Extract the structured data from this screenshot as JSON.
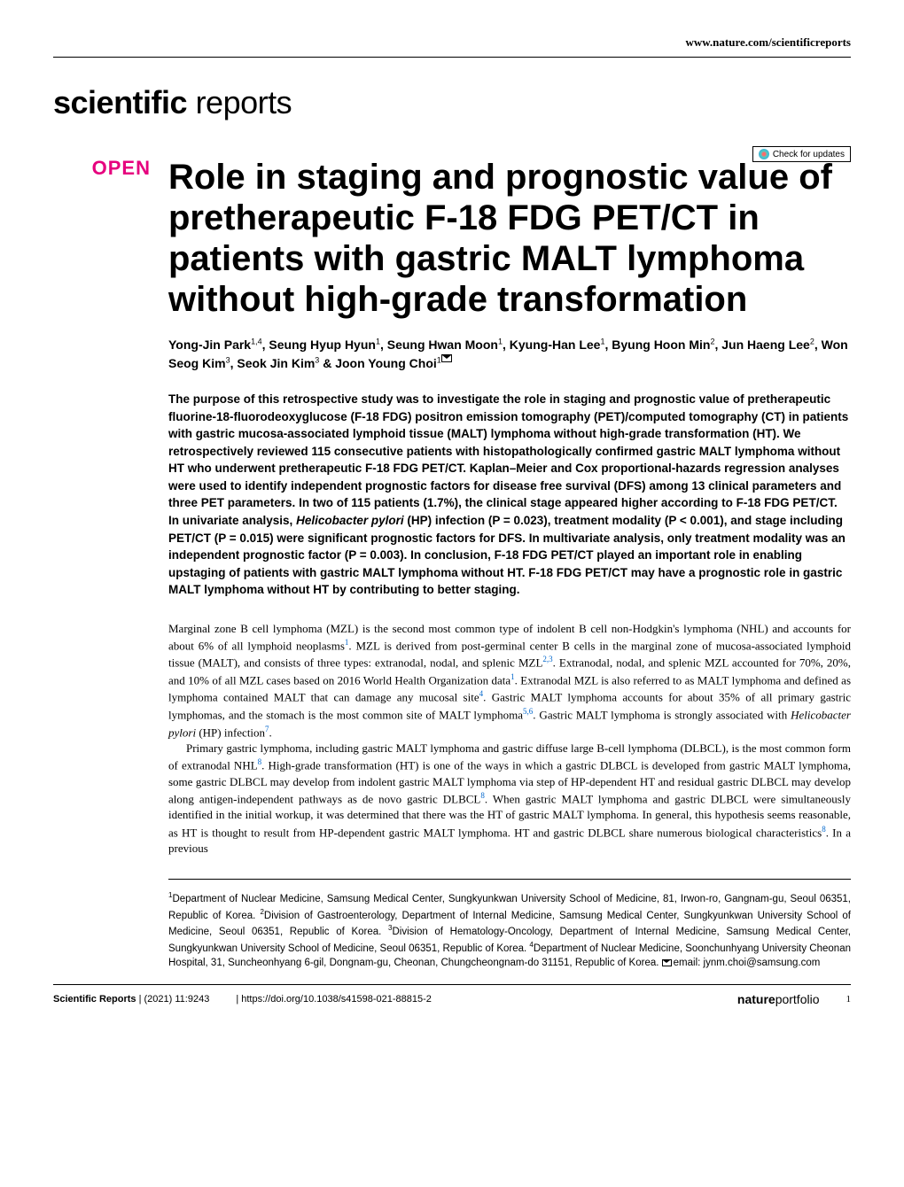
{
  "header": {
    "url": "www.nature.com/scientificreports",
    "journal_logo_bold": "scientific",
    "journal_logo_light": " reports",
    "check_updates": "Check for updates"
  },
  "article": {
    "open_badge": "OPEN",
    "title": "Role in staging and prognostic value of pretherapeutic F-18 FDG PET/CT in patients with gastric MALT lymphoma without high-grade transformation",
    "authors_line1": "Yong-Jin Park",
    "authors_sup1": "1,4",
    "authors_sep1": ", Seung Hyup Hyun",
    "authors_sup2": "1",
    "authors_sep2": ", Seung Hwan Moon",
    "authors_sup3": "1",
    "authors_sep3": ", Kyung-Han Lee",
    "authors_sup4": "1",
    "authors_sep4": ", Byung Hoon Min",
    "authors_sup5": "2",
    "authors_sep5": ", Jun Haeng Lee",
    "authors_sup6": "2",
    "authors_sep6": ", Won Seog Kim",
    "authors_sup7": "3",
    "authors_sep7": ", Seok Jin Kim",
    "authors_sup8": "3",
    "authors_sep8": " & Joon Young Choi",
    "authors_sup9": "1"
  },
  "abstract": {
    "text_part1": "The purpose of this retrospective study was to investigate the role in staging and prognostic value of pretherapeutic fluorine-18-fluorodeoxyglucose (F-18 FDG) positron emission tomography (PET)/computed tomography (CT) in patients with gastric mucosa-associated lymphoid tissue (MALT) lymphoma without high-grade transformation (HT). We retrospectively reviewed 115 consecutive patients with histopathologically confirmed gastric MALT lymphoma without HT who underwent pretherapeutic F-18 FDG PET/CT. Kaplan–Meier and Cox proportional-hazards regression analyses were used to identify independent prognostic factors for disease free survival (DFS) among 13 clinical parameters and three PET parameters. In two of 115 patients (1.7%), the clinical stage appeared higher according to F-18 FDG PET/CT. In univariate analysis, ",
    "italic1": "Helicobacter pylori",
    "text_part2": " (HP) infection (P = 0.023), treatment modality (P < 0.001), and stage including PET/CT (P = 0.015) were significant prognostic factors for DFS. In multivariate analysis, only treatment modality was an independent prognostic factor (P = 0.003). In conclusion, F-18 FDG PET/CT played an important role in enabling upstaging of patients with gastric MALT lymphoma without HT. F-18 FDG PET/CT may have a prognostic role in gastric MALT lymphoma without HT by contributing to better staging."
  },
  "body": {
    "para1_part1": "Marginal zone B cell lymphoma (MZL) is the second most common type of indolent B cell non-Hodgkin's lymphoma (NHL) and accounts for about 6% of all lymphoid neoplasms",
    "para1_ref1": "1",
    "para1_part2": ". MZL is derived from post-germinal center B cells in the marginal zone of mucosa-associated lymphoid tissue (MALT), and consists of three types: extranodal, nodal, and splenic MZL",
    "para1_ref2": "2,3",
    "para1_part3": ". Extranodal, nodal, and splenic MZL accounted for 70%, 20%, and 10% of all MZL cases based on 2016 World Health Organization data",
    "para1_ref3": "1",
    "para1_part4": ". Extranodal MZL is also referred to as MALT lymphoma and defined as lymphoma contained MALT that can damage any mucosal site",
    "para1_ref4": "4",
    "para1_part5": ". Gastric MALT lymphoma accounts for about 35% of all primary gastric lymphomas, and the stomach is the most common site of MALT lymphoma",
    "para1_ref5": "5,6",
    "para1_part6": ". Gastric MALT lymphoma is strongly associated with ",
    "para1_italic1": "Helicobacter pylori",
    "para1_part7": " (HP) infection",
    "para1_ref6": "7",
    "para1_part8": ".",
    "para2_part1": "Primary gastric lymphoma, including gastric MALT lymphoma and gastric diffuse large B-cell lymphoma (DLBCL), is the most common form of extranodal NHL",
    "para2_ref1": "8",
    "para2_part2": ". High-grade transformation (HT) is one of the ways in which a gastric DLBCL is developed from gastric MALT lymphoma, some gastric DLBCL may develop from indolent gastric MALT lymphoma via step of HP-dependent HT and residual gastric DLBCL may develop along antigen-independent pathways as de novo gastric DLBCL",
    "para2_ref2": "8",
    "para2_part3": ". When gastric MALT lymphoma and gastric DLBCL were simultaneously identified in the initial workup, it was determined that there was the HT of gastric MALT lymphoma. In general, this hypothesis seems reasonable, as HT is thought to result from HP-dependent gastric MALT lymphoma. HT and gastric DLBCL share numerous biological characteristics",
    "para2_ref3": "8",
    "para2_part4": ". In a previous"
  },
  "affiliations": {
    "aff1_sup": "1",
    "aff1": "Department of Nuclear Medicine, Samsung Medical Center, Sungkyunkwan University School of Medicine, 81, Irwon-ro, Gangnam-gu, Seoul 06351, Republic of Korea. ",
    "aff2_sup": "2",
    "aff2": "Division of Gastroenterology, Department of Internal Medicine, Samsung Medical Center, Sungkyunkwan University School of Medicine, Seoul 06351, Republic of Korea. ",
    "aff3_sup": "3",
    "aff3": "Division of Hematology-Oncology, Department of Internal Medicine, Samsung Medical Center, Sungkyunkwan University School of Medicine, Seoul 06351, Republic of Korea. ",
    "aff4_sup": "4",
    "aff4": "Department of Nuclear Medicine, Soonchunhyang University Cheonan Hospital, 31, Suncheonhyang 6-gil, Dongnam-gu, Cheonan, Chungcheongnam-do 31151, Republic of Korea. ",
    "email_label": "email: ",
    "email": "jynm.choi@samsung.com"
  },
  "footer": {
    "journal": "Scientific Reports",
    "citation": "(2021) 11:9243",
    "doi": "https://doi.org/10.1038/s41598-021-88815-2",
    "portfolio_bold": "nature",
    "portfolio_light": "portfolio",
    "page_num": "1"
  },
  "colors": {
    "open_pink": "#e6007e",
    "ref_blue": "#0066cc",
    "text": "#000000",
    "background": "#ffffff"
  },
  "typography": {
    "title_size": 40,
    "body_size": 13,
    "abstract_size": 13.5,
    "affiliation_size": 11.5,
    "footer_size": 11
  }
}
